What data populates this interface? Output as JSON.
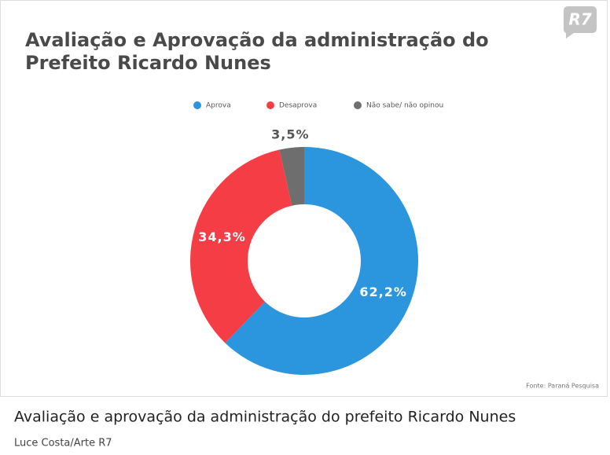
{
  "logo": "R7",
  "chart_data": {
    "type": "donut",
    "title": "Avaliação e Aprovação da administração do Prefeito Ricardo Nunes",
    "categories": [
      "Aprova",
      "Desaprova",
      "Não sabe/ não opinou"
    ],
    "values": [
      62.2,
      34.3,
      3.5
    ],
    "value_labels": [
      "62,2%",
      "34,3%",
      "3,5%"
    ],
    "colors": [
      "#2b96dd",
      "#f53d45",
      "#6e6e6e"
    ],
    "legend": "top",
    "source": "Fonte: Paraná Pesquisa"
  },
  "caption": "Avaliação e aprovação da administração do prefeito Ricardo Nunes",
  "credit": "Luce Costa/Arte R7"
}
